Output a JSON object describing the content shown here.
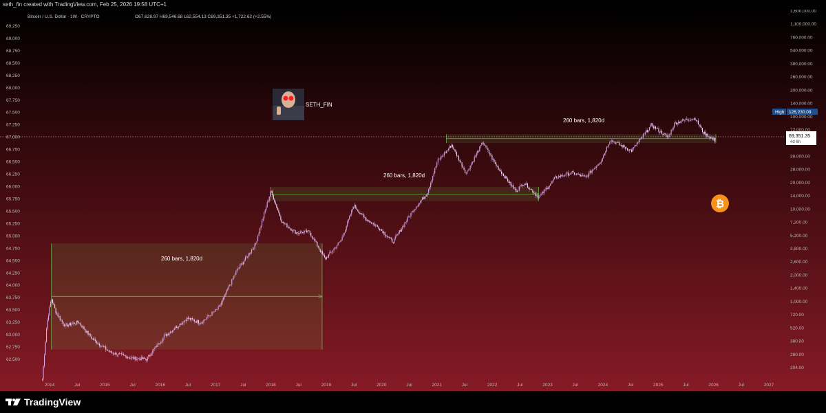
{
  "header": {
    "credit": "seth_fin created with TradingView.com, Feb 25, 2026 19:58 UTC+1"
  },
  "legend": {
    "title": "Bitcoin / U.S. Dollar · 1W · CRYPTO",
    "ohlc": "O67,628.97 H69,546.68 L62,554.13 C69,351.35 +1,722.62 (+2.55%)"
  },
  "left_axis": {
    "labels": [
      "69,250",
      "69,000",
      "68,750",
      "68,500",
      "68,250",
      "68,000",
      "67,750",
      "67,500",
      "67,250",
      "67,000",
      "66,750",
      "66,500",
      "66,250",
      "66,000",
      "65,750",
      "65,500",
      "65,250",
      "65,000",
      "64,750",
      "64,500",
      "64,250",
      "64,000",
      "63,750",
      "63,500",
      "63,250",
      "63,000",
      "62,750",
      "62,500"
    ]
  },
  "right_axis": {
    "labels": [
      "1,600,000.00",
      "1,100,000.00",
      "760,000.00",
      "540,000.00",
      "380,000.00",
      "260,000.00",
      "200,000.00",
      "140,000.00",
      "100,000.00",
      "72,000.00",
      "52,000.00",
      "38,000.00",
      "28,000.00",
      "20,000.00",
      "14,000.00",
      "10,000.00",
      "7,200.00",
      "5,200.00",
      "3,800.00",
      "2,800.00",
      "2,000.00",
      "1,400.00",
      "1,000.00",
      "720.00",
      "520.00",
      "380.00",
      "280.00",
      "204.00"
    ]
  },
  "x_axis": {
    "labels": [
      "2014",
      "Jul",
      "2015",
      "Jul",
      "2016",
      "Jul",
      "2017",
      "Jul",
      "2018",
      "Jul",
      "2019",
      "Jul",
      "2020",
      "Jul",
      "2021",
      "Jul",
      "2022",
      "Jul",
      "2023",
      "Jul",
      "2024",
      "Jul",
      "2025",
      "Jul",
      "2026",
      "Jul",
      "2027"
    ]
  },
  "high_tag": {
    "label": "High",
    "value": "126,230.09"
  },
  "price_tag": {
    "value": "69,351.35",
    "countdown": "4d 6h"
  },
  "annotations": [
    "260 bars, 1,820d",
    "260 bars, 1,820d",
    "260 bars, 1,820d"
  ],
  "avatar": {
    "name": "SETH_FIN"
  },
  "brand": {
    "name": "TradingView"
  },
  "colors": {
    "candles": "#d9a9ee",
    "bg_top": "#000000",
    "bg_bottom": "#861a25",
    "range_line": "#6ab04c",
    "bitcoin": "#f7931a",
    "high_tag": "#1e4f8f"
  },
  "chart_data": {
    "type": "candlestick",
    "title": "Bitcoin / U.S. Dollar · 1W · CRYPTO",
    "scale": "log",
    "ylim": [
      175,
      1800000
    ],
    "xlim": [
      "2013-09-01",
      "2027-06-01"
    ],
    "series": [
      {
        "dates": [
          "2013-10-01",
          "2013-11-01",
          "2013-12-01",
          "2014-01-01",
          "2014-03-01",
          "2014-06-01",
          "2014-09-01",
          "2015-01-01",
          "2015-06-01",
          "2015-09-01",
          "2016-01-01",
          "2016-06-01",
          "2016-09-01",
          "2017-01-01",
          "2017-05-01",
          "2017-09-01",
          "2017-12-15",
          "2018-03-01",
          "2018-06-01",
          "2018-09-01",
          "2018-12-15",
          "2019-04-01",
          "2019-06-26",
          "2019-09-01",
          "2019-12-15",
          "2020-03-15",
          "2020-08-01",
          "2020-11-01",
          "2021-01-08",
          "2021-04-14",
          "2021-07-20",
          "2021-11-10",
          "2022-02-01",
          "2022-06-18",
          "2022-08-15",
          "2022-11-21",
          "2023-03-15",
          "2023-07-01",
          "2023-10-01",
          "2024-01-15",
          "2024-03-14",
          "2024-08-05",
          "2024-12-17",
          "2025-04-07",
          "2025-05-22",
          "2025-08-14",
          "2025-10-06",
          "2025-12-01",
          "2026-02-23"
        ],
        "values": [
          140,
          600,
          1150,
          800,
          560,
          620,
          400,
          280,
          240,
          235,
          430,
          680,
          610,
          900,
          2400,
          4600,
          19000,
          8400,
          6400,
          6500,
          3200,
          5200,
          13000,
          9500,
          7200,
          5000,
          11700,
          18000,
          41000,
          63000,
          30000,
          68000,
          38000,
          19000,
          23500,
          16000,
          27000,
          30500,
          27000,
          42000,
          72000,
          54000,
          106000,
          76500,
          111000,
          123000,
          126230,
          87000,
          69351
        ]
      }
    ],
    "ranges": [
      {
        "from": "2013-12-01",
        "to": "2018-11-25",
        "bars": 260,
        "days": 1820
      },
      {
        "from": "2017-12-15",
        "to": "2022-11-20",
        "bars": 260,
        "days": 1820
      },
      {
        "from": "2021-03-10",
        "to": "2026-02-23",
        "bars": 260,
        "days": 1820
      }
    ],
    "last_price": 69351.35,
    "high": 126230.09
  }
}
